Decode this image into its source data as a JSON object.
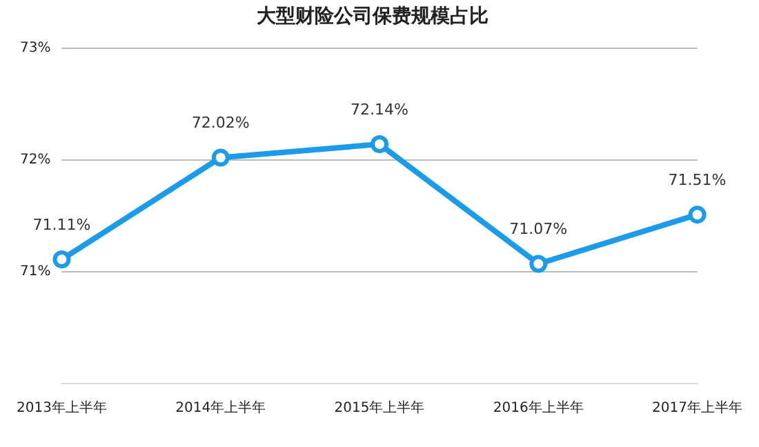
{
  "chart_data": {
    "type": "line",
    "title": "大型财险公司保费规模占比",
    "categories": [
      "2013年上半年",
      "2014年上半年",
      "2015年上半年",
      "2016年上半年",
      "2017年上半年"
    ],
    "series": [
      {
        "color": "#1b9be8",
        "values": [
          71.11,
          72.02,
          72.14,
          71.07,
          71.51
        ],
        "value_labels": [
          "71.11%",
          "72.02%",
          "72.14%",
          "71.07%",
          "71.51%"
        ]
      }
    ],
    "ylim": [
      70,
      73
    ],
    "yticks": [
      {
        "value": 71,
        "label": "71%"
      },
      {
        "value": 72,
        "label": "72%"
      },
      {
        "value": 73,
        "label": "73%"
      }
    ],
    "grid": "y",
    "marker": "circle",
    "line_style": "solid",
    "legend": false
  }
}
